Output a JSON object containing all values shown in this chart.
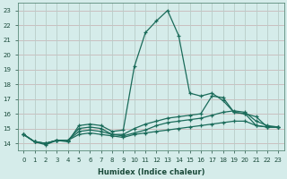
{
  "xlabel": "Humidex (Indice chaleur)",
  "xlim": [
    -0.5,
    23.5
  ],
  "ylim": [
    13.5,
    23.5
  ],
  "yticks": [
    14,
    15,
    16,
    17,
    18,
    19,
    20,
    21,
    22,
    23
  ],
  "xticks": [
    0,
    1,
    2,
    3,
    4,
    5,
    6,
    7,
    8,
    9,
    10,
    11,
    12,
    13,
    14,
    15,
    16,
    17,
    18,
    19,
    20,
    21,
    22,
    23
  ],
  "xtick_labels": [
    "0",
    "1",
    "2",
    "3",
    "4",
    "5",
    "6",
    "7",
    "8",
    "9",
    "10",
    "11",
    "12",
    "13",
    "14",
    "15",
    "16",
    "17",
    "18",
    "19",
    "20",
    "21",
    "22",
    "23"
  ],
  "bg_color": "#d5ecea",
  "grid_color_h": "#c8b8b8",
  "grid_color_v": "#b8ccc8",
  "line_color": "#1a6b5a",
  "lines": [
    {
      "x": [
        0,
        1,
        2,
        3,
        4,
        5,
        6,
        7,
        8,
        9,
        10,
        11,
        12,
        13,
        14,
        15,
        16,
        17,
        18,
        19,
        20,
        21,
        22,
        23
      ],
      "y": [
        14.6,
        14.1,
        13.9,
        14.2,
        14.1,
        15.2,
        15.3,
        15.2,
        14.8,
        14.9,
        19.2,
        21.5,
        22.3,
        23.0,
        21.3,
        17.4,
        17.2,
        17.4,
        16.9,
        16.1,
        16.0,
        15.2,
        15.1,
        15.1
      ]
    },
    {
      "x": [
        0,
        1,
        2,
        3,
        4,
        5,
        6,
        7,
        8,
        9,
        10,
        11,
        12,
        13,
        14,
        15,
        16,
        17,
        18,
        19,
        20,
        21,
        22,
        23
      ],
      "y": [
        14.6,
        14.1,
        14.0,
        14.2,
        14.2,
        15.0,
        15.1,
        15.0,
        14.6,
        14.6,
        15.0,
        15.3,
        15.5,
        15.7,
        15.8,
        15.9,
        16.0,
        17.2,
        17.1,
        16.1,
        16.0,
        15.8,
        15.1,
        15.1
      ]
    },
    {
      "x": [
        0,
        1,
        2,
        3,
        4,
        5,
        6,
        7,
        8,
        9,
        10,
        11,
        12,
        13,
        14,
        15,
        16,
        17,
        18,
        19,
        20,
        21,
        22,
        23
      ],
      "y": [
        14.6,
        14.1,
        14.0,
        14.2,
        14.2,
        14.8,
        14.9,
        14.8,
        14.6,
        14.5,
        14.7,
        14.9,
        15.2,
        15.4,
        15.5,
        15.6,
        15.7,
        15.9,
        16.1,
        16.2,
        16.1,
        15.5,
        15.2,
        15.1
      ]
    },
    {
      "x": [
        0,
        1,
        2,
        3,
        4,
        5,
        6,
        7,
        8,
        9,
        10,
        11,
        12,
        13,
        14,
        15,
        16,
        17,
        18,
        19,
        20,
        21,
        22,
        23
      ],
      "y": [
        14.6,
        14.1,
        14.0,
        14.2,
        14.2,
        14.6,
        14.7,
        14.6,
        14.5,
        14.4,
        14.6,
        14.7,
        14.8,
        14.9,
        15.0,
        15.1,
        15.2,
        15.3,
        15.4,
        15.5,
        15.5,
        15.2,
        15.1,
        15.1
      ]
    }
  ]
}
